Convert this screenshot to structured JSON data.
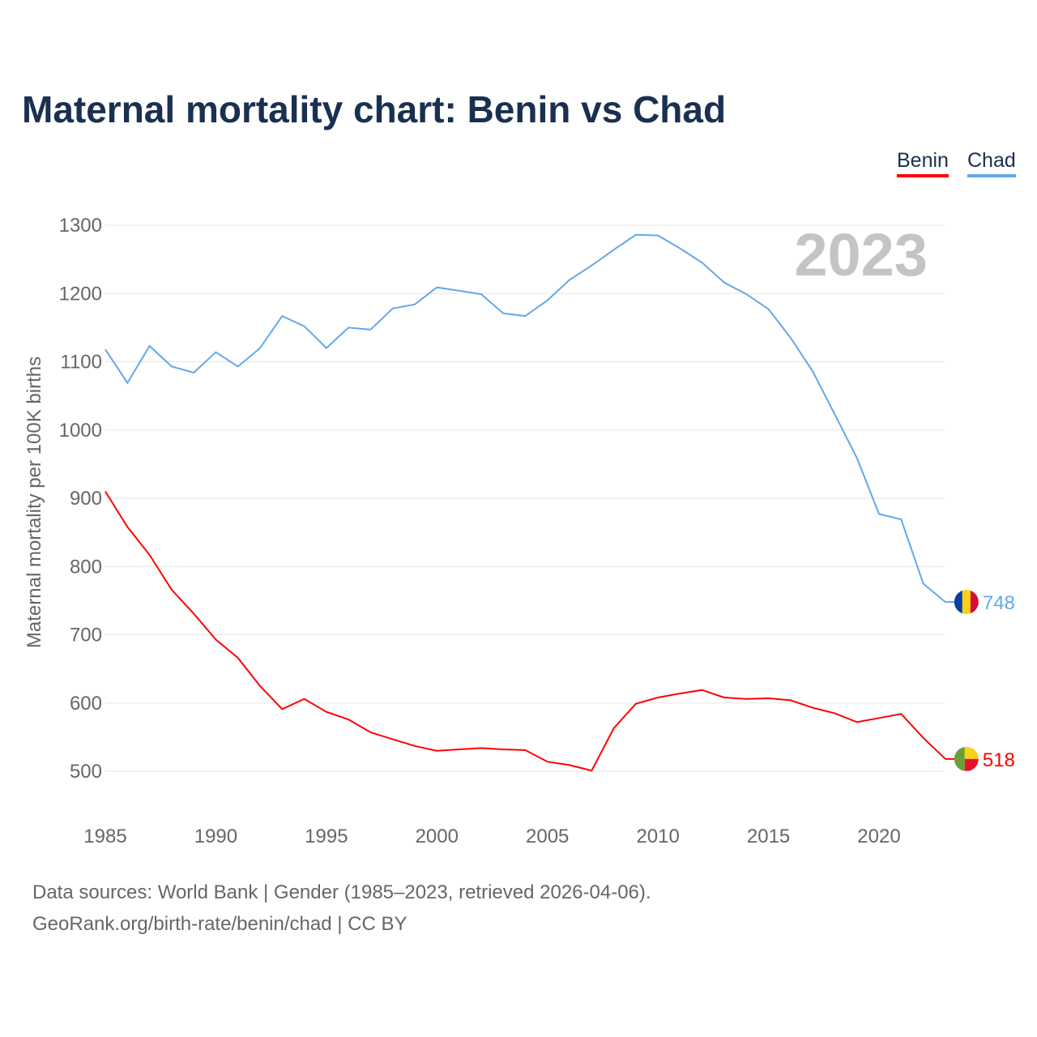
{
  "title": "Maternal mortality chart: Benin vs Chad",
  "legend": [
    {
      "label": "Benin",
      "color": "#ff0000"
    },
    {
      "label": "Chad",
      "color": "#62a8eb"
    }
  ],
  "year_watermark": "2023",
  "footer": {
    "line1": "Data sources: World Bank | Gender (1985–2023, retrieved 2026-04-06).",
    "line2": "GeoRank.org/birth-rate/benin/chad | CC BY"
  },
  "chart_data": {
    "type": "line",
    "title": "Maternal mortality chart: Benin vs Chad",
    "xlabel": "",
    "ylabel": "Maternal mortality per 100K births",
    "xlim": [
      1985,
      2023
    ],
    "ylim": [
      500,
      1300
    ],
    "xticks": [
      "1985",
      "1990",
      "1995",
      "2000",
      "2005",
      "2010",
      "2015",
      "2020"
    ],
    "yticks": [
      "500",
      "600",
      "700",
      "800",
      "900",
      "1000",
      "1100",
      "1200",
      "1300"
    ],
    "grid": true,
    "legend_position": "top-right",
    "x": [
      1985,
      1986,
      1987,
      1988,
      1989,
      1990,
      1991,
      1992,
      1993,
      1994,
      1995,
      1996,
      1997,
      1998,
      1999,
      2000,
      2001,
      2002,
      2003,
      2004,
      2005,
      2006,
      2007,
      2008,
      2009,
      2010,
      2011,
      2012,
      2013,
      2014,
      2015,
      2016,
      2017,
      2018,
      2019,
      2020,
      2021,
      2022,
      2023
    ],
    "series": [
      {
        "name": "Benin",
        "color": "#ff0000",
        "end_label": "518",
        "values": [
          910,
          858,
          817,
          766,
          731,
          693,
          666,
          625,
          591,
          606,
          587,
          576,
          557,
          547,
          537,
          530,
          532,
          534,
          532,
          531,
          514,
          509,
          501,
          563,
          599,
          608,
          614,
          619,
          608,
          606,
          607,
          604,
          593,
          585,
          572,
          578,
          584,
          549,
          518
        ]
      },
      {
        "name": "Chad",
        "color": "#62a8eb",
        "end_label": "748",
        "values": [
          1118,
          1069,
          1123,
          1093,
          1084,
          1114,
          1093,
          1120,
          1167,
          1152,
          1120,
          1150,
          1147,
          1178,
          1184,
          1209,
          1204,
          1199,
          1171,
          1167,
          1190,
          1220,
          1241,
          1264,
          1286,
          1285,
          1266,
          1245,
          1216,
          1199,
          1177,
          1135,
          1086,
          1023,
          959,
          877,
          869,
          775,
          748
        ]
      }
    ]
  }
}
